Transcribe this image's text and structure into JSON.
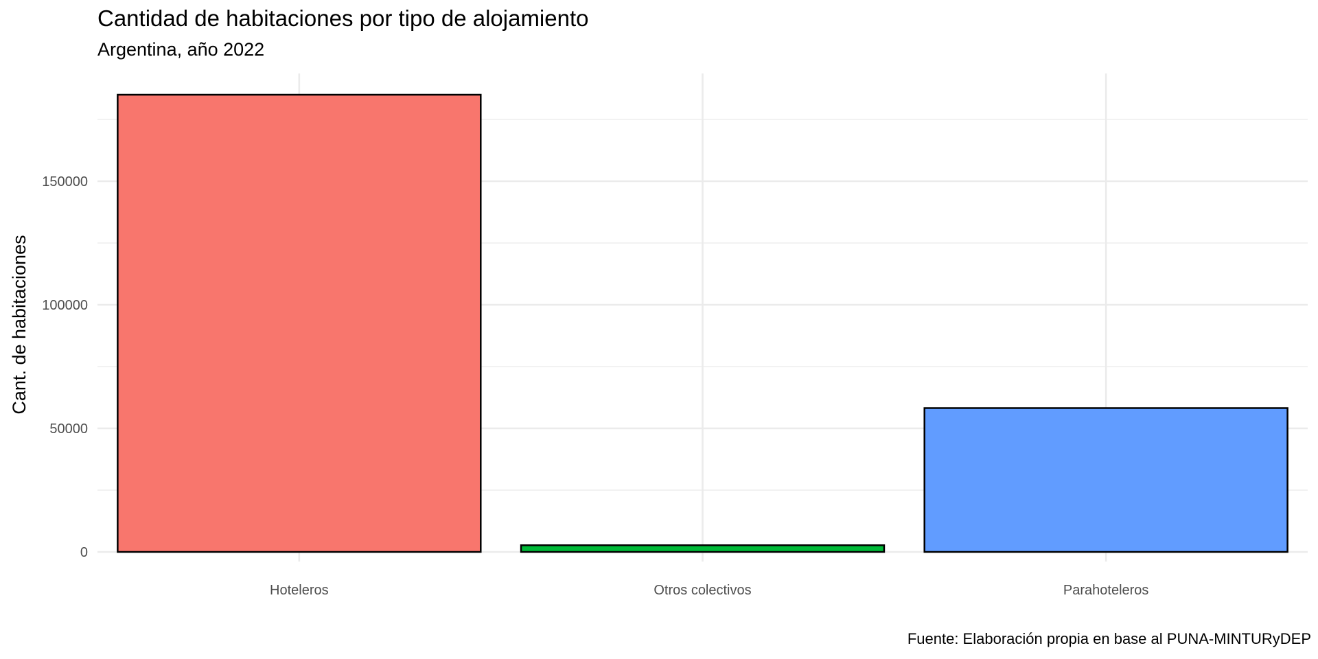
{
  "chart_data": {
    "type": "bar",
    "title": "Cantidad de habitaciones por tipo de alojamiento",
    "subtitle": "Argentina, año 2022",
    "caption": "Fuente: Elaboración propia en base al PUNA-MINTURyDEP",
    "xlabel": "",
    "ylabel": "Cant. de habitaciones",
    "categories": [
      "Hoteleros",
      "Otros colectivos",
      "Parahoteleros"
    ],
    "values": [
      185000,
      2700,
      58200
    ],
    "colors": [
      "#F8766D",
      "#00BA38",
      "#619CFF"
    ],
    "ylim": [
      0,
      190000
    ],
    "yticks": [
      0,
      50000,
      100000,
      150000
    ],
    "ytick_labels": [
      "0",
      "50000",
      "100000",
      "150000"
    ],
    "grid": true,
    "legend": "none"
  }
}
